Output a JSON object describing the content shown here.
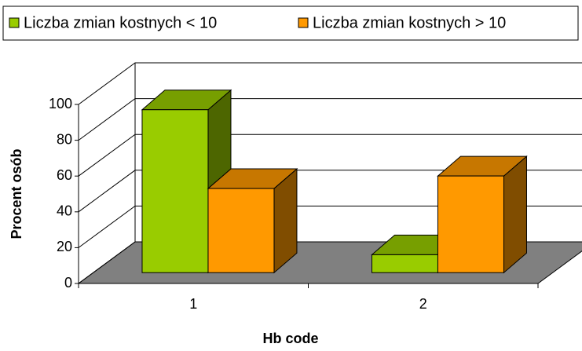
{
  "chart_data": {
    "type": "bar3d",
    "categories": [
      "1",
      "2"
    ],
    "series": [
      {
        "name": "Liczba zmian kostnych < 10",
        "color": "#99cc00",
        "values": [
          91,
          10
        ]
      },
      {
        "name": "Liczba zmian kostnych > 10",
        "color": "#ff9900",
        "values": [
          47,
          54
        ]
      }
    ],
    "ylim": [
      0,
      100
    ],
    "yticks": [
      0,
      20,
      40,
      60,
      80,
      100
    ],
    "grid": true,
    "xlabel": "Hb code",
    "ylabel": "Procent osób",
    "legend": "top"
  }
}
